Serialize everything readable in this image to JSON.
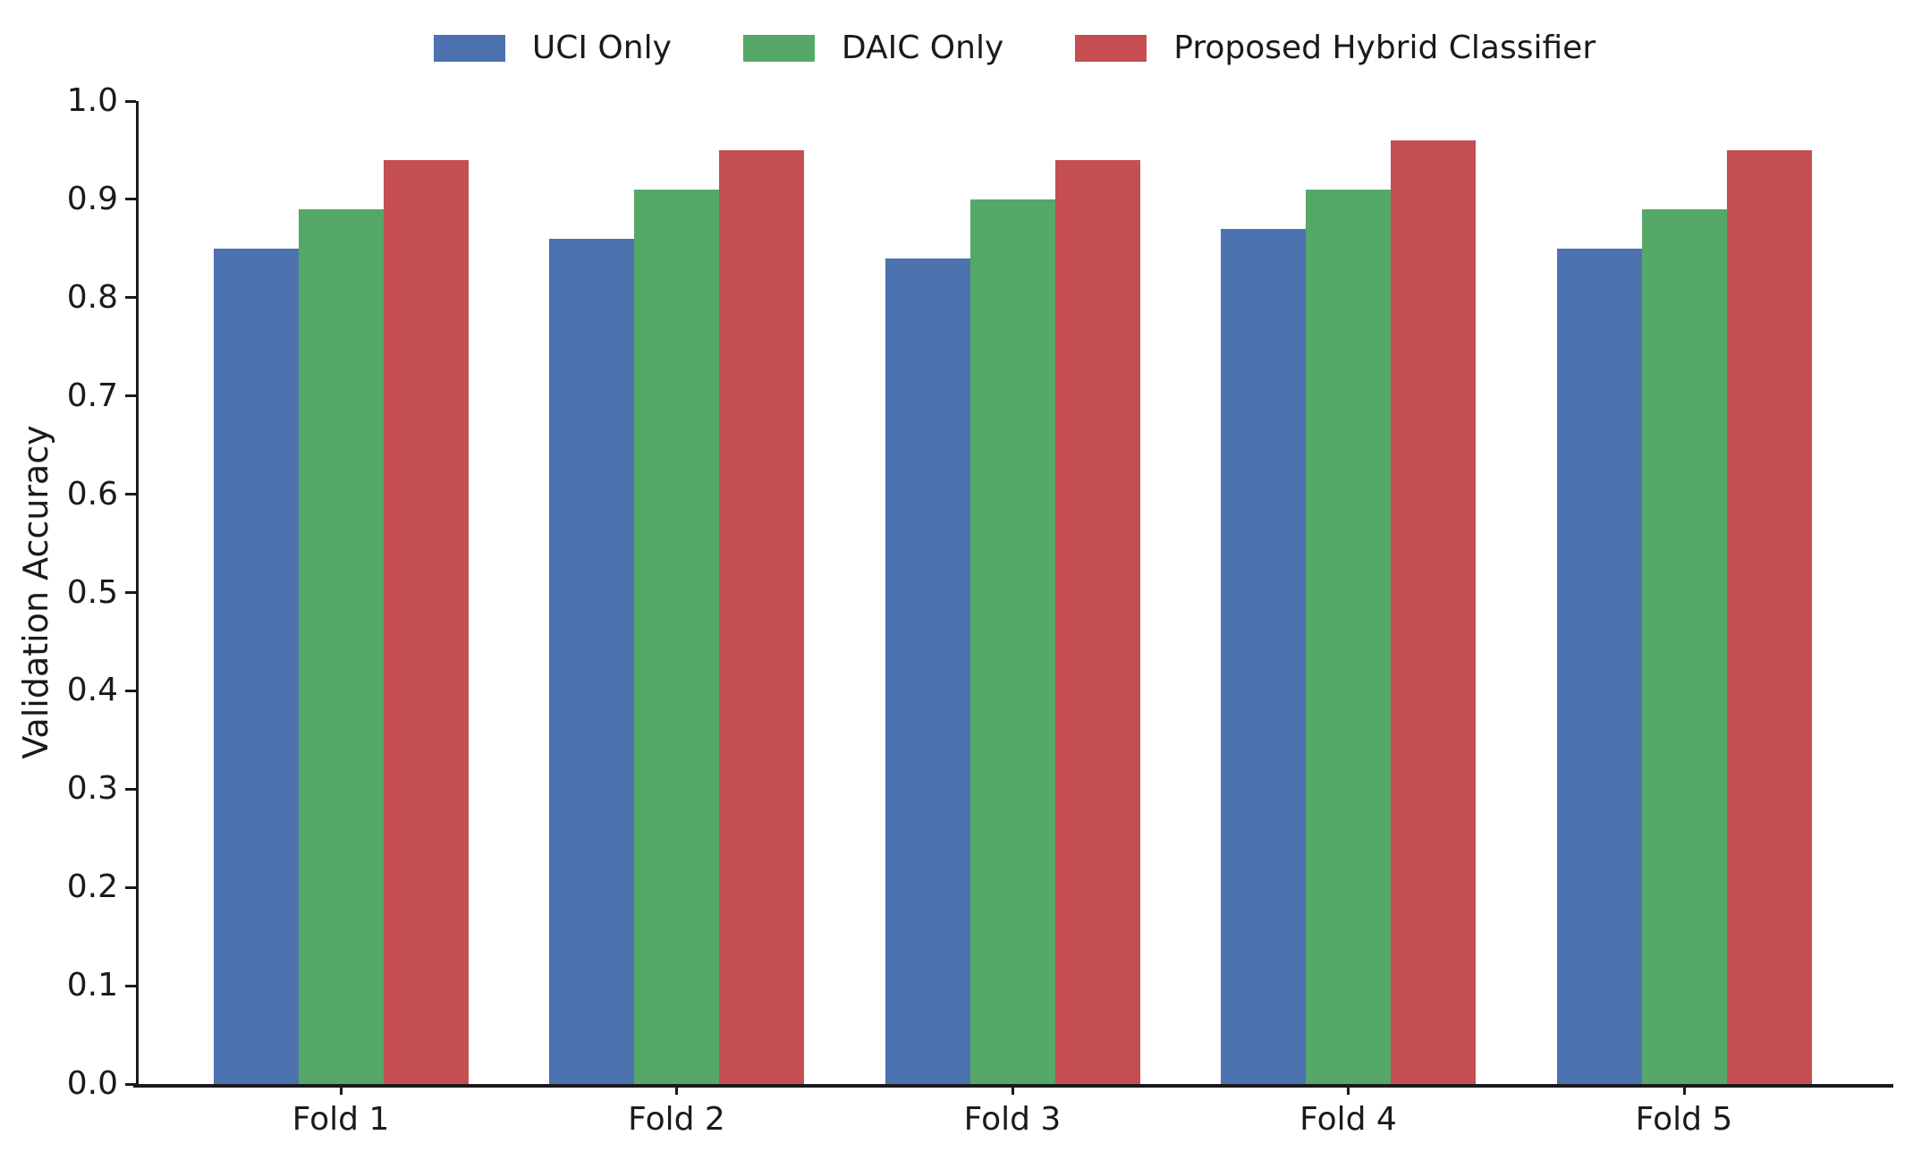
{
  "chart_data": {
    "type": "bar",
    "title": "",
    "xlabel": "",
    "ylabel": "Validation Accuracy",
    "categories": [
      "Fold 1",
      "Fold 2",
      "Fold 3",
      "Fold 4",
      "Fold 5"
    ],
    "series": [
      {
        "name": "UCI Only",
        "color": "#4C72B0",
        "values": [
          0.85,
          0.86,
          0.84,
          0.87,
          0.85
        ]
      },
      {
        "name": "DAIC Only",
        "color": "#55A868",
        "values": [
          0.89,
          0.91,
          0.9,
          0.91,
          0.89
        ]
      },
      {
        "name": "Proposed Hybrid Classifier",
        "color": "#C44E52",
        "values": [
          0.94,
          0.95,
          0.94,
          0.96,
          0.95
        ]
      }
    ],
    "ylim": [
      0.0,
      1.0
    ],
    "yticks": [
      0.0,
      0.1,
      0.2,
      0.3,
      0.4,
      0.5,
      0.6,
      0.7,
      0.8,
      0.9,
      1.0
    ],
    "ytick_labels": [
      "0.0",
      "0.1",
      "0.2",
      "0.3",
      "0.4",
      "0.5",
      "0.6",
      "0.7",
      "0.8",
      "0.9",
      "1.0"
    ],
    "legend_position": "top",
    "grid": false,
    "axis_color": "#1a1a1a",
    "text_color": "#1a1a1a",
    "background_color": "#ffffff"
  }
}
